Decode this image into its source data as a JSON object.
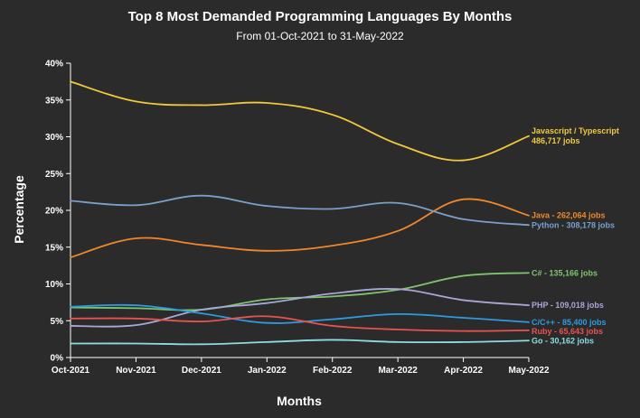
{
  "chart_data": {
    "type": "line",
    "title": "Top 8 Most Demanded Programming Languages By Months",
    "subtitle": "From 01-Oct-2021 to 31-May-2022",
    "xlabel": "Months",
    "ylabel": "Percentage",
    "ylim": [
      0,
      40
    ],
    "yticks": [
      "0%",
      "5%",
      "10%",
      "15%",
      "20%",
      "25%",
      "30%",
      "35%",
      "40%"
    ],
    "categories": [
      "Oct-2021",
      "Nov-2021",
      "Dec-2021",
      "Jan-2022",
      "Feb-2022",
      "Mar-2022",
      "Apr-2022",
      "May-2022"
    ],
    "grid": false,
    "series": [
      {
        "name": "Javascript / Typescript",
        "label_lines": [
          "Javascript / Typescript",
          "486,717 jobs"
        ],
        "color": "#f0c93c",
        "values": [
          37.5,
          34.8,
          34.3,
          34.6,
          33.0,
          29.0,
          26.8,
          30.1
        ]
      },
      {
        "name": "Java",
        "label_lines": [
          "Java - 262,064 jobs"
        ],
        "color": "#f0882a",
        "values": [
          13.6,
          16.2,
          15.3,
          14.5,
          15.2,
          17.2,
          21.5,
          19.3
        ]
      },
      {
        "name": "Python",
        "label_lines": [
          "Python - 308,178 jobs"
        ],
        "color": "#7a9fca",
        "values": [
          21.3,
          20.7,
          22.0,
          20.6,
          20.2,
          21.0,
          18.8,
          18.0
        ]
      },
      {
        "name": "C#",
        "label_lines": [
          "C# - 135,166 jobs"
        ],
        "color": "#7ec46e",
        "values": [
          6.8,
          6.7,
          6.5,
          7.9,
          8.3,
          9.2,
          11.1,
          11.5
        ]
      },
      {
        "name": "PHP",
        "label_lines": [
          "PHP - 109,018 jobs"
        ],
        "color": "#a9a6d9",
        "values": [
          4.3,
          4.4,
          6.5,
          7.4,
          8.7,
          9.3,
          7.8,
          7.1
        ]
      },
      {
        "name": "C/C++",
        "label_lines": [
          "C/C++ - 85,400 jobs"
        ],
        "color": "#2e9be0",
        "values": [
          6.9,
          7.1,
          6.0,
          4.7,
          5.2,
          5.9,
          5.4,
          4.8
        ]
      },
      {
        "name": "Ruby",
        "label_lines": [
          "Ruby - 65,643 jobs"
        ],
        "color": "#e8524f",
        "values": [
          5.3,
          5.3,
          4.9,
          5.6,
          4.3,
          3.8,
          3.6,
          3.7
        ]
      },
      {
        "name": "Go",
        "label_lines": [
          "Go - 30,162 jobs"
        ],
        "color": "#8fdce0",
        "values": [
          1.9,
          1.9,
          1.8,
          2.1,
          2.4,
          2.1,
          2.1,
          2.3
        ]
      }
    ]
  }
}
